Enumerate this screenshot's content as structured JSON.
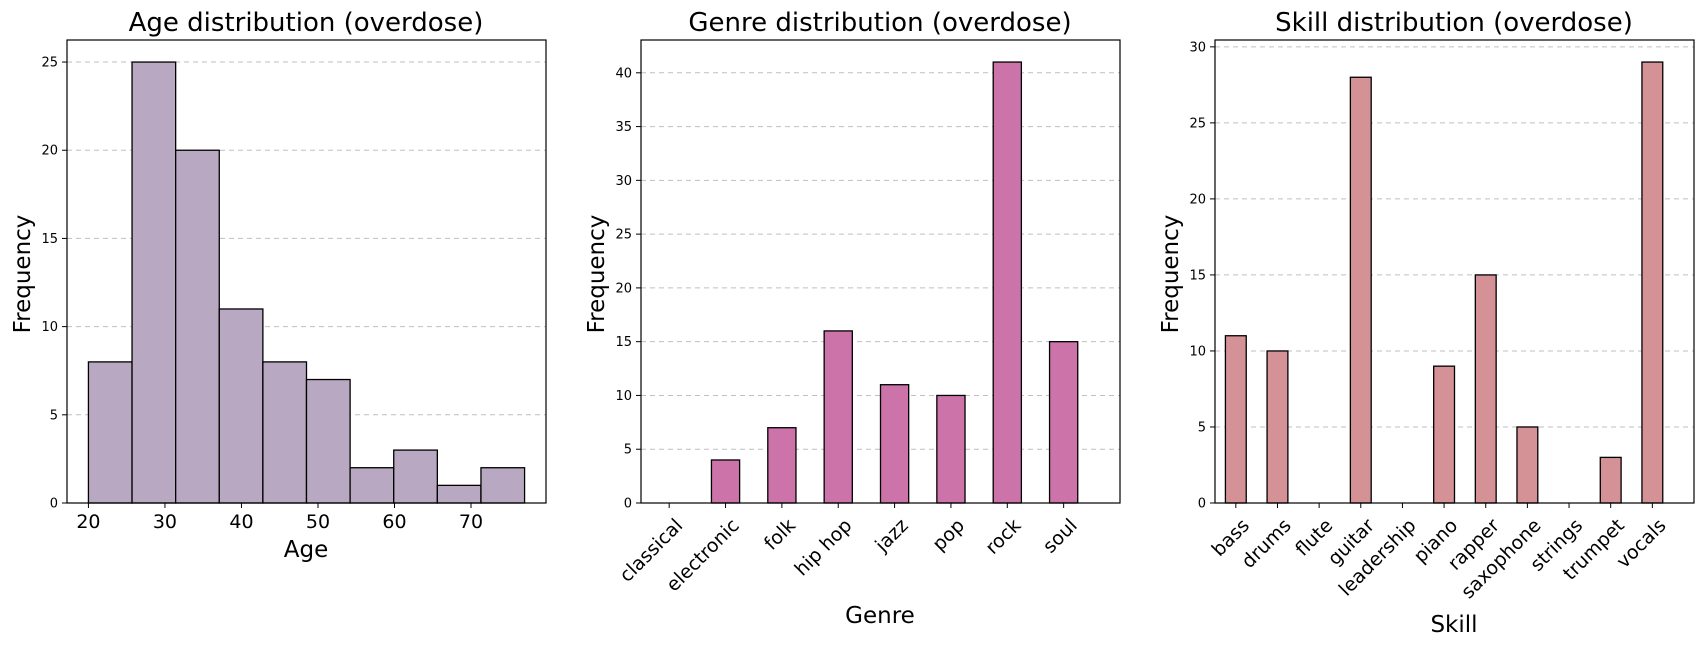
{
  "chart_data": [
    {
      "type": "histogram",
      "title": "Age distribution (overdose)",
      "xlabel": "Age",
      "ylabel": "Frequency",
      "bin_edges": [
        20,
        25.7,
        31.4,
        37.1,
        42.8,
        48.5,
        54.2,
        59.9,
        65.6,
        71.3,
        77
      ],
      "values": [
        8,
        25,
        20,
        11,
        8,
        7,
        2,
        3,
        1,
        2
      ],
      "xlim": [
        17.2,
        79.8
      ],
      "ylim": [
        0,
        26.25
      ],
      "xticks": [
        20,
        30,
        40,
        50,
        60,
        70
      ],
      "yticks": [
        0,
        5,
        10,
        15,
        20,
        25
      ],
      "color": "#b9a8c1",
      "grid": "y-dashed"
    },
    {
      "type": "bar",
      "title": "Genre distribution (overdose)",
      "xlabel": "Genre",
      "ylabel": "Frequency",
      "categories": [
        "classical",
        "electronic",
        "folk",
        "hip hop",
        "jazz",
        "pop",
        "rock",
        "soul"
      ],
      "values": [
        0,
        4,
        7,
        16,
        11,
        10,
        41,
        15
      ],
      "ylim": [
        0,
        43.05
      ],
      "yticks": [
        0,
        5,
        10,
        15,
        20,
        25,
        30,
        35,
        40
      ],
      "color": "#cc73aa",
      "grid": "y-dashed"
    },
    {
      "type": "bar",
      "title": "Skill distribution (overdose)",
      "xlabel": "Skill",
      "ylabel": "Frequency",
      "categories": [
        "bass",
        "drums",
        "flute",
        "guitar",
        "leadership",
        "piano",
        "rapper",
        "saxophone",
        "strings",
        "trumpet",
        "vocals"
      ],
      "values": [
        11,
        10,
        0,
        28,
        0,
        9,
        15,
        5,
        0,
        3,
        29
      ],
      "ylim": [
        0,
        30.45
      ],
      "yticks": [
        0,
        5,
        10,
        15,
        20,
        25,
        30
      ],
      "color": "#d49196",
      "grid": "y-dashed"
    }
  ]
}
